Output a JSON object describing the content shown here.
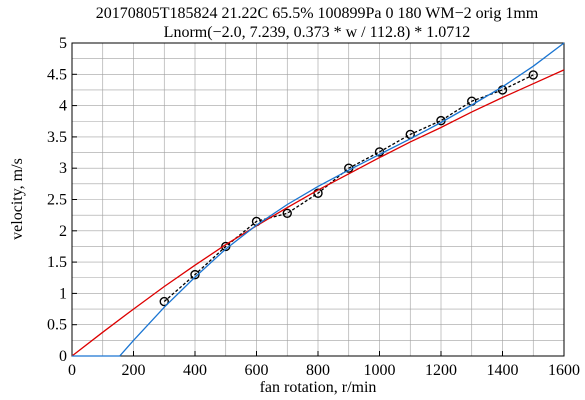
{
  "chart_data": {
    "type": "line",
    "title": "20170805T185824 21.22C  65.5% 100899Pa 0 180 WM−2 orig 1mm",
    "subtitle": "Lnorm(−2.0, 7.239, 0.373 * w / 112.8) * 1.0712",
    "xlabel": "fan rotation, r/min",
    "ylabel": "velocity, m/s",
    "xlim": [
      0,
      1600
    ],
    "ylim": [
      0,
      5
    ],
    "x_ticks": [
      0,
      200,
      400,
      600,
      800,
      1000,
      1200,
      1400,
      1600
    ],
    "x_tick_labels": [
      "0",
      "200",
      "400",
      "600",
      "800",
      "1000",
      "1200",
      "1400",
      "1600"
    ],
    "y_ticks": [
      0,
      0.5,
      1,
      1.5,
      2,
      2.5,
      3,
      3.5,
      4,
      4.5,
      5
    ],
    "y_tick_labels": [
      "0",
      "0.5",
      "1",
      "1.5",
      "2",
      "2.5",
      "3",
      "3.5",
      "4",
      "4.5",
      "5"
    ],
    "grid": true,
    "series": [
      {
        "kind": "measured",
        "marker": "open-circle",
        "line": "dashed",
        "color": "#000000",
        "x": [
          300,
          400,
          500,
          600,
          700,
          800,
          900,
          1000,
          1100,
          1200,
          1300,
          1400,
          1500
        ],
        "y": [
          0.87,
          1.3,
          1.75,
          2.15,
          2.28,
          2.6,
          3.0,
          3.26,
          3.54,
          3.76,
          4.07,
          4.25,
          4.49
        ]
      },
      {
        "kind": "fit",
        "color": "#dd0000",
        "x": [
          0,
          100,
          200,
          300,
          400,
          500,
          600,
          700,
          800,
          900,
          1000,
          1100,
          1200,
          1300,
          1400,
          1500,
          1600
        ],
        "y": [
          0.0,
          0.38,
          0.75,
          1.11,
          1.45,
          1.78,
          2.08,
          2.37,
          2.65,
          2.91,
          3.17,
          3.42,
          3.65,
          3.9,
          4.13,
          4.35,
          4.57
        ]
      },
      {
        "kind": "fit",
        "color": "#1a75d2",
        "x": [
          0,
          100,
          155,
          200,
          300,
          400,
          500,
          600,
          700,
          800,
          900,
          1000,
          1100,
          1200,
          1300,
          1400,
          1500,
          1600
        ],
        "y": [
          0.0,
          0.0,
          0.0,
          0.25,
          0.78,
          1.26,
          1.71,
          2.09,
          2.42,
          2.71,
          2.97,
          3.22,
          3.47,
          3.73,
          4.01,
          4.3,
          4.63,
          5.0
        ]
      }
    ]
  }
}
